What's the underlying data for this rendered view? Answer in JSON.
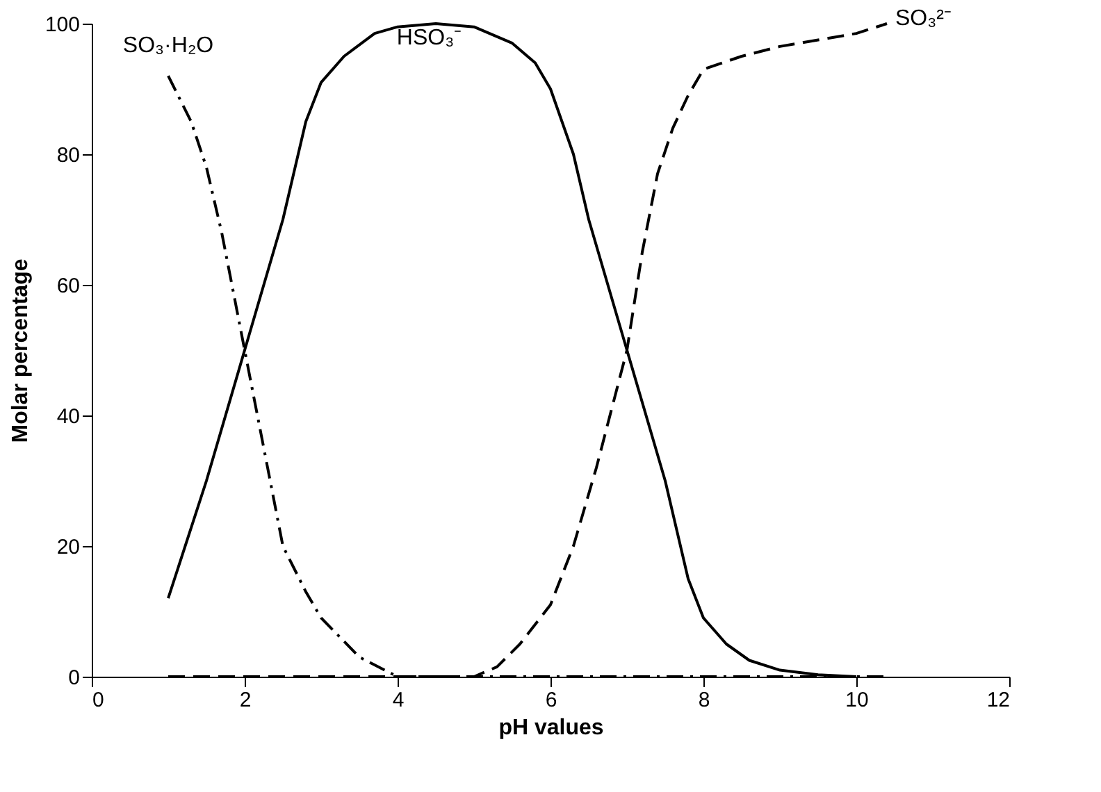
{
  "chart_data": {
    "type": "line",
    "xlabel": "pH values",
    "ylabel": "Molar percentage",
    "xlim": [
      0,
      12
    ],
    "xticks": [
      0,
      2,
      4,
      6,
      8,
      10,
      12
    ],
    "ylim": [
      0,
      100
    ],
    "yticks": [
      0,
      20,
      40,
      60,
      80,
      100
    ],
    "grid": false,
    "marker": "none",
    "series": [
      {
        "name": "SO₃·H₂O",
        "color": "#000000",
        "line_style": "dashdot",
        "x": [
          1,
          1.3,
          1.5,
          1.7,
          2,
          2.3,
          2.5,
          2.8,
          3,
          3.5,
          4,
          5,
          6,
          7,
          8,
          9,
          10,
          10.4
        ],
        "values": [
          92,
          85,
          78,
          68,
          50,
          32,
          20,
          13,
          9,
          3,
          0,
          0,
          0,
          0,
          0,
          0,
          0,
          0
        ]
      },
      {
        "name": "HSO₃⁻",
        "color": "#000000",
        "line_style": "solid",
        "x": [
          1,
          1.5,
          2,
          2.5,
          2.8,
          3,
          3.3,
          3.7,
          4,
          4.5,
          5,
          5.5,
          5.8,
          6,
          6.3,
          6.5,
          7,
          7.5,
          7.8,
          8,
          8.3,
          8.6,
          9,
          9.5,
          10
        ],
        "values": [
          12,
          30,
          50,
          70,
          85,
          91,
          95,
          98.5,
          99.5,
          100,
          99.5,
          97,
          94,
          90,
          80,
          70,
          50,
          30,
          15,
          9,
          5,
          2.5,
          1,
          0.3,
          0
        ]
      },
      {
        "name": "SO₃²⁻",
        "color": "#000000",
        "line_style": "dashed",
        "x": [
          1,
          2,
          3,
          4,
          5,
          5.3,
          5.6,
          6,
          6.3,
          6.6,
          7,
          7.2,
          7.4,
          7.6,
          7.8,
          8,
          8.5,
          9,
          9.5,
          10,
          10.4
        ],
        "values": [
          0,
          0,
          0,
          0,
          0,
          1.5,
          5,
          11,
          20,
          32,
          50,
          65,
          77,
          84,
          89,
          93,
          95,
          96.5,
          97.5,
          98.5,
          100
        ]
      }
    ]
  }
}
